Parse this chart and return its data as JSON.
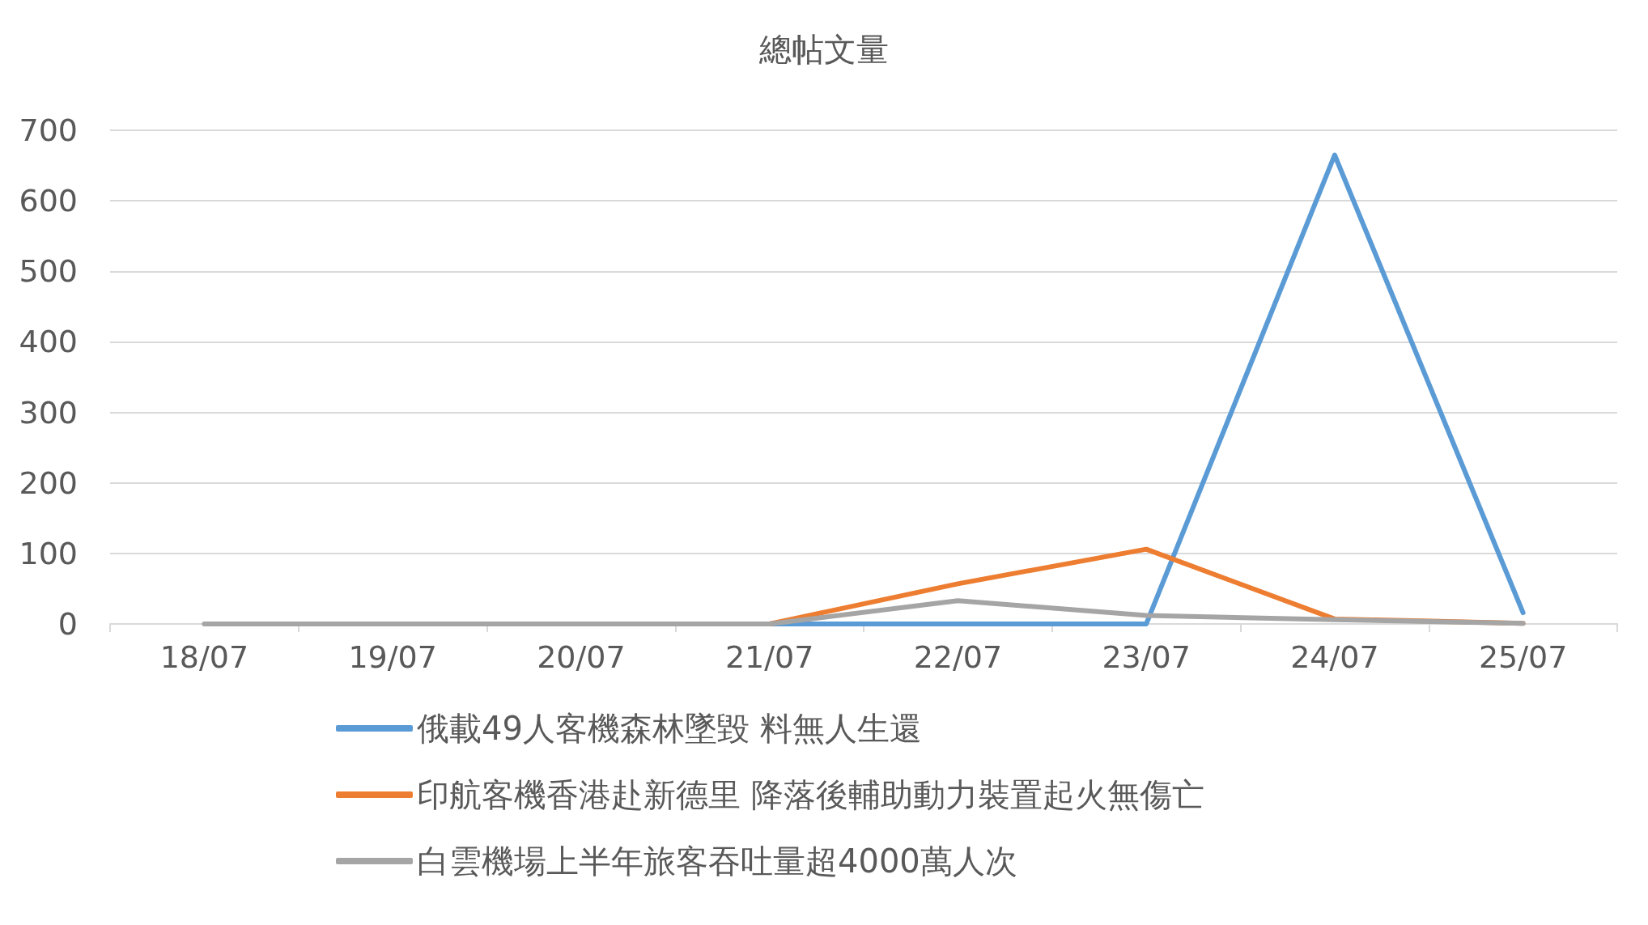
{
  "chart_data": {
    "type": "line",
    "title": "總帖文量",
    "categories": [
      "18/07",
      "19/07",
      "20/07",
      "21/07",
      "22/07",
      "23/07",
      "24/07",
      "25/07"
    ],
    "series": [
      {
        "name": "俄載49人客機森林墜毀 料無人生還",
        "color": "#5b9bd5",
        "values": [
          null,
          null,
          null,
          0,
          0,
          0,
          665,
          16
        ]
      },
      {
        "name": "印航客機香港赴新德里 降落後輔助動力裝置起火無傷亡",
        "color": "#ed7d31",
        "values": [
          null,
          null,
          null,
          0,
          57,
          106,
          7,
          1
        ]
      },
      {
        "name": "白雲機場上半年旅客吞吐量超4000萬人次",
        "color": "#a5a5a5",
        "values": [
          0,
          0,
          0,
          0,
          33,
          12,
          6,
          1
        ]
      }
    ],
    "ylim": [
      0,
      700
    ],
    "yticks": [
      0,
      100,
      200,
      300,
      400,
      500,
      600,
      700
    ],
    "grid": "y",
    "legend": "bottom",
    "marker": "none",
    "line_style": "solid"
  }
}
